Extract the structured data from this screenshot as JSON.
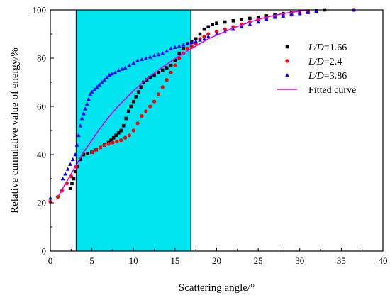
{
  "chart_data": {
    "type": "scatter",
    "xlabel": "Scattering angle/°",
    "ylabel": "Relative cumulative value of energy/%",
    "xlim": [
      0,
      40
    ],
    "ylim": [
      0,
      100
    ],
    "xticks": [
      "0",
      "5",
      "10",
      "15",
      "20",
      "25",
      "30",
      "35",
      "40"
    ],
    "yticks": [
      "0",
      "20",
      "40",
      "60",
      "80",
      "100"
    ],
    "grid": false,
    "legend_position": "right",
    "highlight_band": {
      "x_range": [
        3.1,
        16.9
      ],
      "color": "#00e5ef"
    },
    "series": [
      {
        "name_parts": [
          "L/D",
          "=1.66"
        ],
        "marker": "square",
        "color": "#000000",
        "x": [
          2.4,
          2.6,
          2.8,
          3.0,
          3.2,
          3.6,
          4.0,
          4.5,
          5.0,
          5.5,
          6.0,
          6.5,
          7.0,
          7.3,
          7.6,
          7.9,
          8.2,
          8.5,
          8.8,
          9.1,
          9.4,
          9.7,
          10.0,
          10.3,
          10.6,
          10.9,
          11.2,
          11.6,
          12.0,
          12.5,
          13.0,
          13.5,
          14.0,
          14.5,
          15.0,
          15.5,
          16.0,
          16.5,
          17.0,
          17.5,
          18.0,
          18.5,
          19.0,
          19.5,
          20.0,
          21.0,
          22.0,
          23.0,
          24.0,
          25.0,
          26.0,
          27.0,
          28.0,
          29.0,
          30.0,
          31.0,
          32.0,
          33.0,
          36.5
        ],
        "y": [
          26,
          28,
          30,
          33,
          35,
          38,
          40,
          40.5,
          41,
          42,
          43,
          44,
          45,
          46,
          47,
          48,
          49,
          50,
          52,
          55,
          58,
          60,
          62,
          64,
          66,
          68,
          70,
          71,
          72,
          73,
          74,
          75,
          76,
          77,
          79,
          82,
          84,
          86,
          87,
          88,
          90,
          92,
          93,
          94,
          94.5,
          95,
          95.5,
          96,
          96.5,
          97,
          97.5,
          98,
          98.5,
          99,
          99.3,
          99.5,
          99.7,
          100,
          100
        ]
      },
      {
        "name_parts": [
          "L/D",
          "=2.4"
        ],
        "marker": "circle",
        "color": "#ff0000",
        "x": [
          0,
          0.9,
          1.4,
          2.0,
          2.5,
          3.1,
          5.1,
          5.5,
          6.0,
          6.5,
          7.0,
          7.5,
          8.0,
          8.5,
          9.0,
          9.5,
          10.0,
          10.5,
          11.0,
          11.5,
          12.0,
          12.5,
          13.0,
          13.5,
          14.0,
          14.5,
          15.0,
          15.5,
          16.0,
          16.5,
          17.0,
          17.5,
          18.0,
          18.5,
          19.0,
          20.0,
          21.0,
          22.0,
          23.0,
          24.0,
          25.0,
          26.0,
          27.0,
          28.0,
          29.0,
          30.0,
          31.0,
          32.0,
          36.5
        ],
        "y": [
          20.5,
          22.5,
          25,
          28,
          31,
          35,
          41,
          42,
          43,
          44,
          44.5,
          45,
          45.5,
          46,
          47,
          48,
          50,
          53,
          56,
          58,
          60,
          62,
          65,
          68,
          71,
          74,
          77,
          80,
          82,
          84,
          85,
          86,
          88,
          89,
          90,
          91,
          92,
          93,
          94,
          95,
          96,
          96.5,
          97,
          97.5,
          98,
          98.5,
          99,
          99.5,
          100
        ]
      },
      {
        "name_parts": [
          "L/D",
          "=3.86"
        ],
        "marker": "triangle",
        "color": "#0000ff",
        "x": [
          0,
          1.5,
          1.8,
          2.1,
          2.4,
          2.7,
          3.0,
          3.2,
          3.4,
          3.6,
          3.8,
          4.0,
          4.2,
          4.4,
          4.6,
          4.8,
          5.0,
          5.3,
          5.6,
          5.9,
          6.2,
          6.5,
          6.8,
          7.1,
          7.4,
          7.8,
          8.2,
          8.6,
          9.0,
          9.5,
          10.0,
          10.5,
          11.0,
          11.5,
          12.0,
          12.5,
          13.0,
          13.5,
          14.0,
          14.5,
          15.0,
          15.5,
          16.0,
          16.5,
          17.0,
          17.5,
          18.0,
          18.5,
          19.0,
          20.0,
          21.0,
          22.0,
          23.0,
          24.0,
          25.0,
          26.0,
          27.0,
          28.0,
          29.0,
          30.0,
          31.0,
          32.0,
          36.5
        ],
        "y": [
          22,
          30,
          32,
          34,
          36,
          38,
          40,
          44,
          48,
          52,
          55,
          57,
          59,
          61,
          63,
          65,
          66,
          67,
          68,
          69,
          70,
          71,
          72,
          73,
          73.5,
          74,
          75,
          75.5,
          76,
          77,
          78,
          79,
          79.5,
          80,
          80.5,
          81,
          81.5,
          82,
          83,
          84,
          84.5,
          85,
          85.5,
          86,
          86.5,
          87,
          87.5,
          88,
          89,
          90,
          91,
          92,
          93,
          94,
          95,
          96,
          97,
          97.5,
          98,
          98.5,
          99,
          99.5,
          100
        ]
      },
      {
        "name_parts": [
          "Fitted curve"
        ],
        "marker": "line",
        "color": "#e000e0",
        "x": [
          1,
          2,
          3,
          4,
          5,
          6,
          7,
          8,
          9,
          10,
          11,
          12,
          13,
          14,
          15,
          16,
          17,
          18,
          19,
          20,
          22,
          24,
          26,
          28,
          30,
          31
        ],
        "y": [
          23,
          29,
          35,
          41,
          46,
          51,
          55.5,
          59.5,
          63,
          66.5,
          69.5,
          72.5,
          75,
          77.5,
          79.8,
          82,
          84,
          86,
          88,
          89.5,
          92.5,
          95,
          97,
          98.5,
          99.5,
          100
        ]
      }
    ]
  }
}
